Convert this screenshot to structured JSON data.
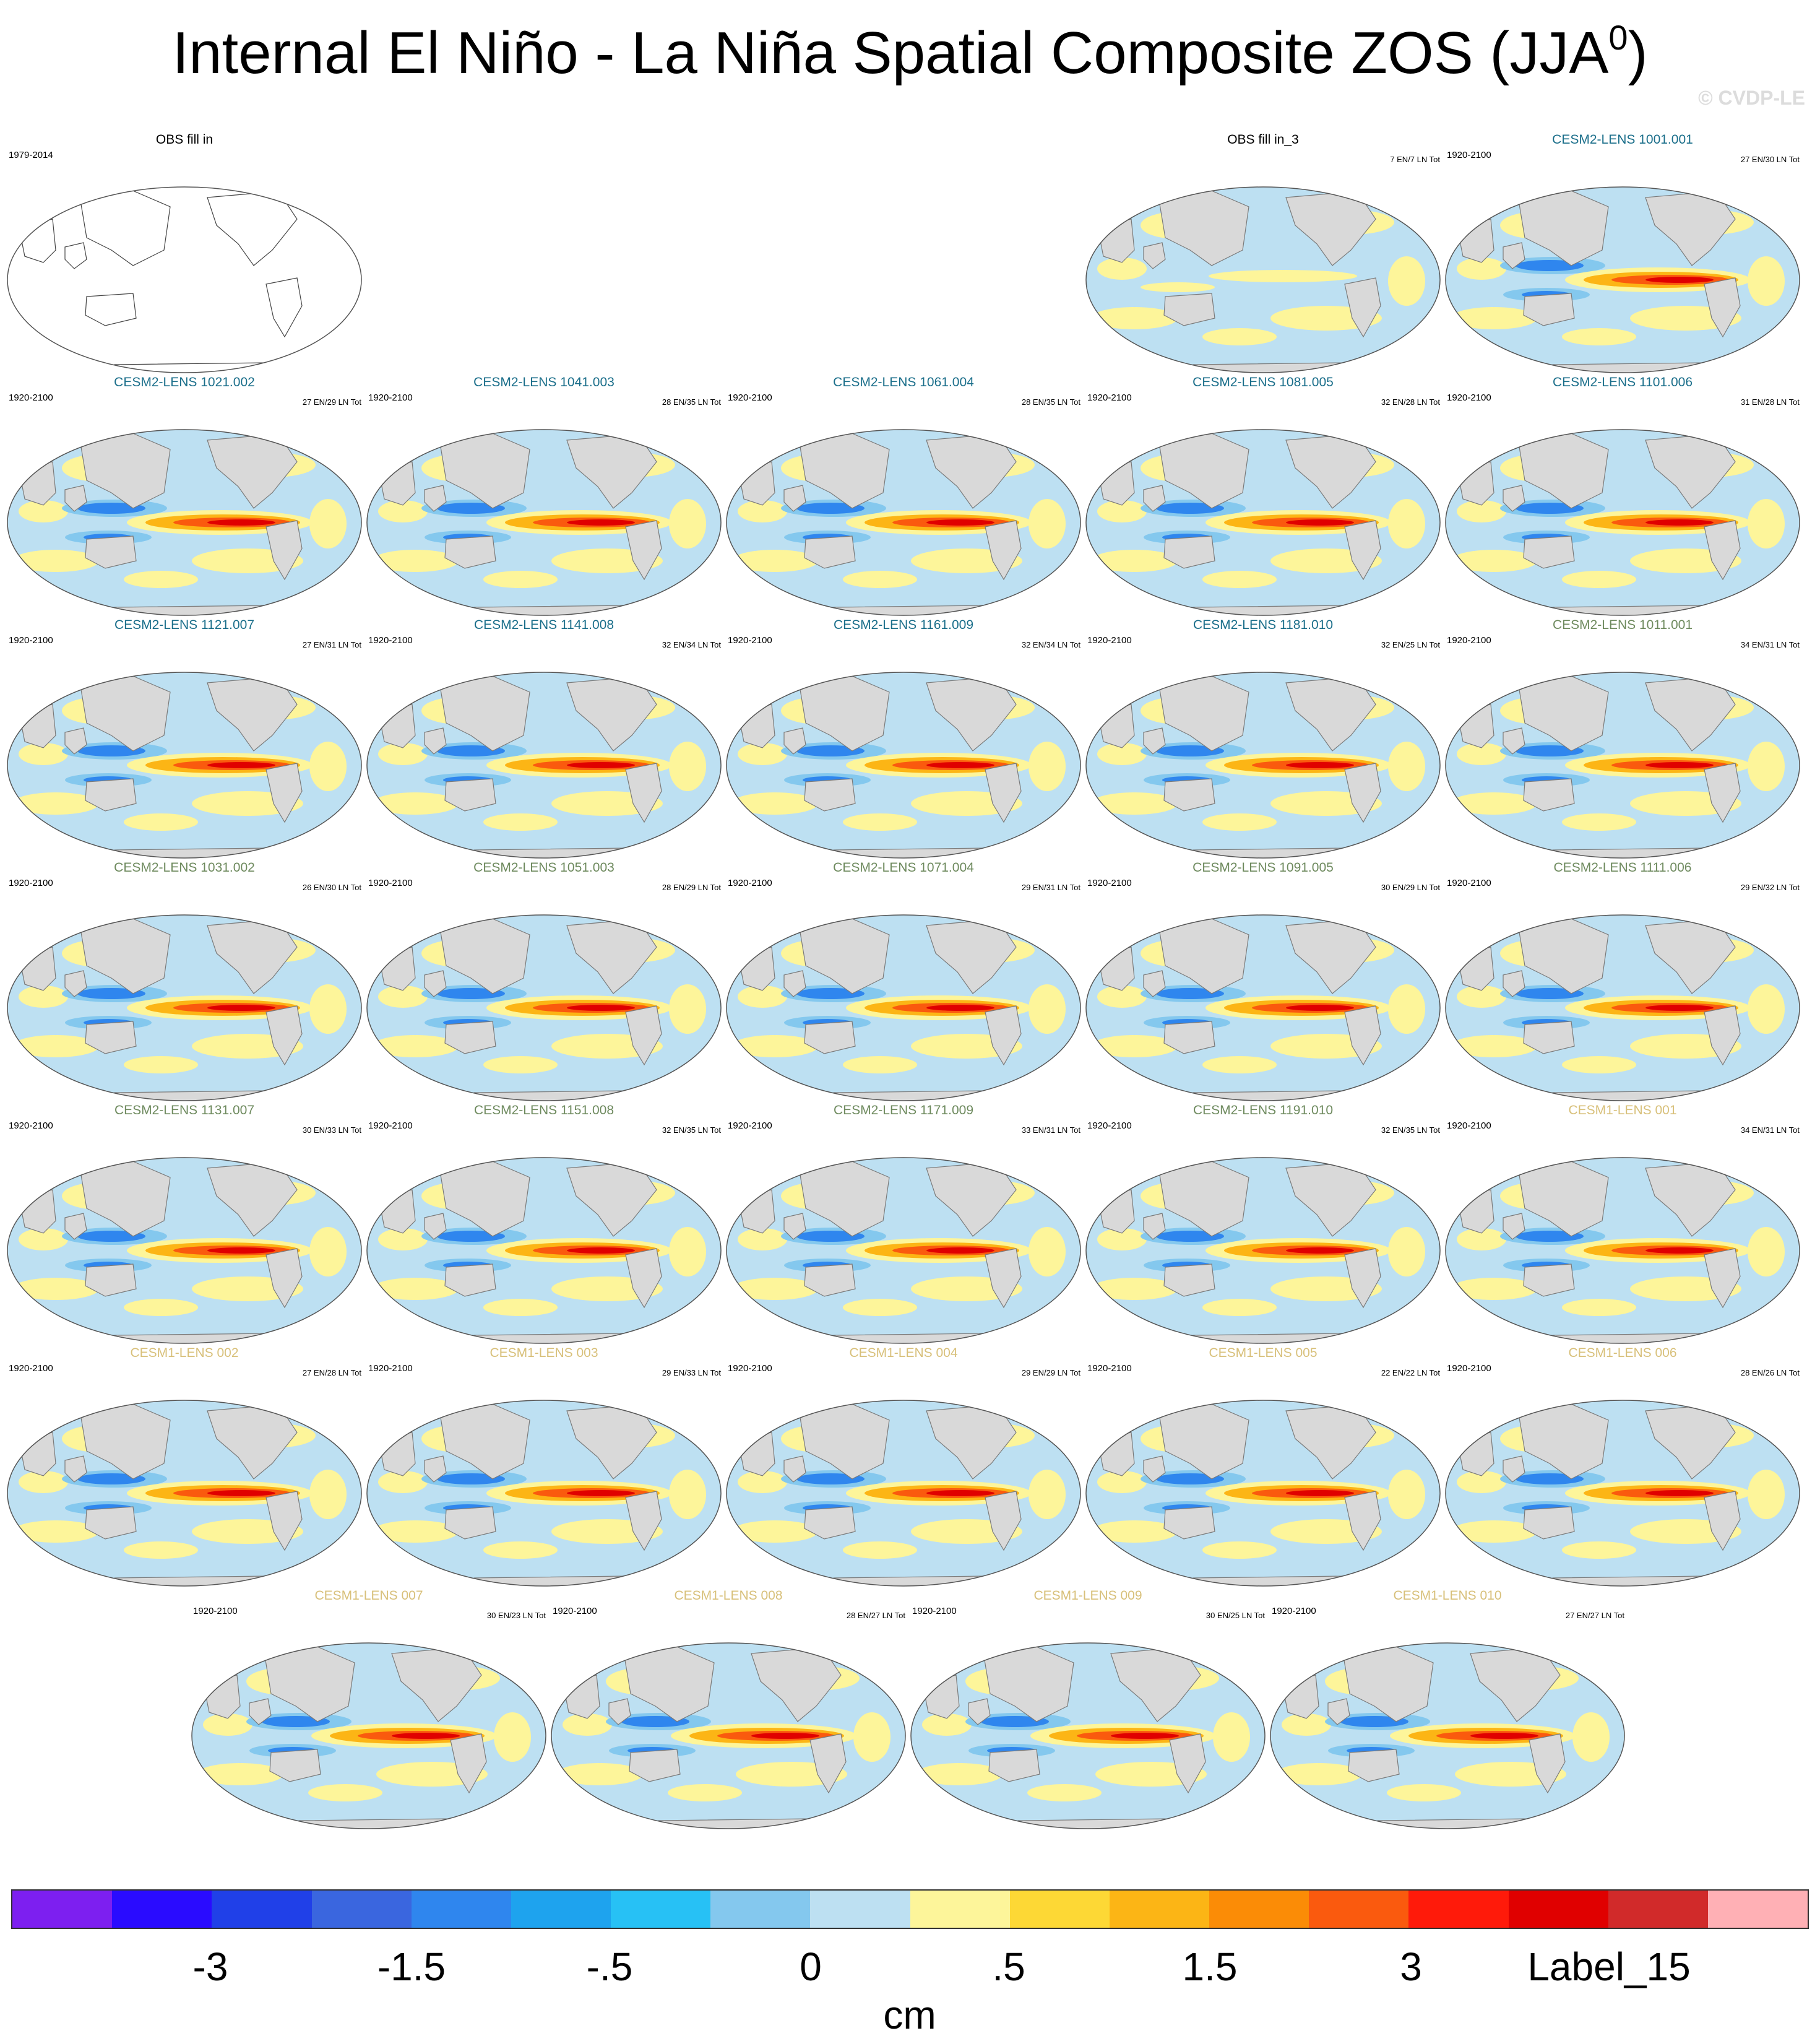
{
  "title_main": "Internal El Niño - La Niña Spatial Composite ZOS (JJA",
  "title_sup": "0",
  "title_end": ")",
  "watermark": "© CVDP-LE",
  "colors": {
    "land": "#d9d9d9",
    "ocean_neutral": "#bde0f2",
    "name_cesm2_smbb": "#1a6e8a",
    "name_cesm2_cmip6": "#6e8a5e",
    "name_cesm1": "#d8c07a",
    "name_obs": "#000000"
  },
  "panels": [
    {
      "name": "OBS fill in",
      "years": "1979-2014",
      "count": "",
      "group": "obs",
      "pattern": "none"
    },
    {
      "name": "OBS fill in_3",
      "years": "",
      "count": "7 EN/7 LN Tot",
      "group": "obs",
      "pattern": "weak"
    },
    {
      "name": "CESM2-LENS 1001.001",
      "years": "1920-2100",
      "count": "27 EN/30 LN Tot",
      "group": "cesm2_smbb",
      "pattern": "strong"
    },
    {
      "name": "CESM2-LENS 1021.002",
      "years": "1920-2100",
      "count": "27 EN/29 LN Tot",
      "group": "cesm2_smbb",
      "pattern": "strong"
    },
    {
      "name": "CESM2-LENS 1041.003",
      "years": "1920-2100",
      "count": "28 EN/35 LN Tot",
      "group": "cesm2_smbb",
      "pattern": "strong"
    },
    {
      "name": "CESM2-LENS 1061.004",
      "years": "1920-2100",
      "count": "28 EN/35 LN Tot",
      "group": "cesm2_smbb",
      "pattern": "strong"
    },
    {
      "name": "CESM2-LENS 1081.005",
      "years": "1920-2100",
      "count": "32 EN/28 LN Tot",
      "group": "cesm2_smbb",
      "pattern": "strong"
    },
    {
      "name": "CESM2-LENS 1101.006",
      "years": "1920-2100",
      "count": "31 EN/28 LN Tot",
      "group": "cesm2_smbb",
      "pattern": "strong"
    },
    {
      "name": "CESM2-LENS 1121.007",
      "years": "1920-2100",
      "count": "27 EN/31 LN Tot",
      "group": "cesm2_smbb",
      "pattern": "strong"
    },
    {
      "name": "CESM2-LENS 1141.008",
      "years": "1920-2100",
      "count": "32 EN/34 LN Tot",
      "group": "cesm2_smbb",
      "pattern": "strong"
    },
    {
      "name": "CESM2-LENS 1161.009",
      "years": "1920-2100",
      "count": "32 EN/34 LN Tot",
      "group": "cesm2_smbb",
      "pattern": "strong"
    },
    {
      "name": "CESM2-LENS 1181.010",
      "years": "1920-2100",
      "count": "32 EN/25 LN Tot",
      "group": "cesm2_smbb",
      "pattern": "strong"
    },
    {
      "name": "CESM2-LENS 1011.001",
      "years": "1920-2100",
      "count": "34 EN/31 LN Tot",
      "group": "cesm2_cmip6",
      "pattern": "strong"
    },
    {
      "name": "CESM2-LENS 1031.002",
      "years": "1920-2100",
      "count": "26 EN/30 LN Tot",
      "group": "cesm2_cmip6",
      "pattern": "strong"
    },
    {
      "name": "CESM2-LENS 1051.003",
      "years": "1920-2100",
      "count": "28 EN/29 LN Tot",
      "group": "cesm2_cmip6",
      "pattern": "strong"
    },
    {
      "name": "CESM2-LENS 1071.004",
      "years": "1920-2100",
      "count": "29 EN/31 LN Tot",
      "group": "cesm2_cmip6",
      "pattern": "strong"
    },
    {
      "name": "CESM2-LENS 1091.005",
      "years": "1920-2100",
      "count": "30 EN/29 LN Tot",
      "group": "cesm2_cmip6",
      "pattern": "strong"
    },
    {
      "name": "CESM2-LENS 1111.006",
      "years": "1920-2100",
      "count": "29 EN/32 LN Tot",
      "group": "cesm2_cmip6",
      "pattern": "strong"
    },
    {
      "name": "CESM2-LENS 1131.007",
      "years": "1920-2100",
      "count": "30 EN/33 LN Tot",
      "group": "cesm2_cmip6",
      "pattern": "strong"
    },
    {
      "name": "CESM2-LENS 1151.008",
      "years": "1920-2100",
      "count": "32 EN/35 LN Tot",
      "group": "cesm2_cmip6",
      "pattern": "strong"
    },
    {
      "name": "CESM2-LENS 1171.009",
      "years": "1920-2100",
      "count": "33 EN/31 LN Tot",
      "group": "cesm2_cmip6",
      "pattern": "strong"
    },
    {
      "name": "CESM2-LENS 1191.010",
      "years": "1920-2100",
      "count": "32 EN/35 LN Tot",
      "group": "cesm2_cmip6",
      "pattern": "strong"
    },
    {
      "name": "CESM1-LENS 001",
      "years": "1920-2100",
      "count": "34 EN/31 LN Tot",
      "group": "cesm1",
      "pattern": "strong"
    },
    {
      "name": "CESM1-LENS 002",
      "years": "1920-2100",
      "count": "27 EN/28 LN Tot",
      "group": "cesm1",
      "pattern": "strong"
    },
    {
      "name": "CESM1-LENS 003",
      "years": "1920-2100",
      "count": "29 EN/33 LN Tot",
      "group": "cesm1",
      "pattern": "strong"
    },
    {
      "name": "CESM1-LENS 004",
      "years": "1920-2100",
      "count": "29 EN/29 LN Tot",
      "group": "cesm1",
      "pattern": "strong"
    },
    {
      "name": "CESM1-LENS 005",
      "years": "1920-2100",
      "count": "22 EN/22 LN Tot",
      "group": "cesm1",
      "pattern": "strong"
    },
    {
      "name": "CESM1-LENS 006",
      "years": "1920-2100",
      "count": "28 EN/26 LN Tot",
      "group": "cesm1",
      "pattern": "strong"
    },
    {
      "name": "CESM1-LENS 007",
      "years": "1920-2100",
      "count": "30 EN/23 LN Tot",
      "group": "cesm1",
      "pattern": "strong"
    },
    {
      "name": "CESM1-LENS 008",
      "years": "1920-2100",
      "count": "28 EN/27 LN Tot",
      "group": "cesm1",
      "pattern": "strong"
    },
    {
      "name": "CESM1-LENS 009",
      "years": "1920-2100",
      "count": "30 EN/25 LN Tot",
      "group": "cesm1",
      "pattern": "strong"
    },
    {
      "name": "CESM1-LENS 010",
      "years": "1920-2100",
      "count": "27 EN/27 LN Tot",
      "group": "cesm1",
      "pattern": "strong"
    }
  ],
  "colorbar": {
    "swatches": [
      "#7d1ff0",
      "#2a0bff",
      "#2040e8",
      "#3a66df",
      "#2f86ee",
      "#1ea3ee",
      "#27c1f5",
      "#84c8ee",
      "#bde0f2",
      "#fdf59a",
      "#fdd835",
      "#fcb515",
      "#fb8c06",
      "#fa5a0e",
      "#ff1a0a",
      "#e00000",
      "#d12a2a",
      "#ffb0b5"
    ],
    "labels": [
      "-3",
      "-1.5",
      "-.5",
      "0",
      ".5",
      "1.5",
      "3",
      "Label_15"
    ],
    "units": "cm"
  }
}
